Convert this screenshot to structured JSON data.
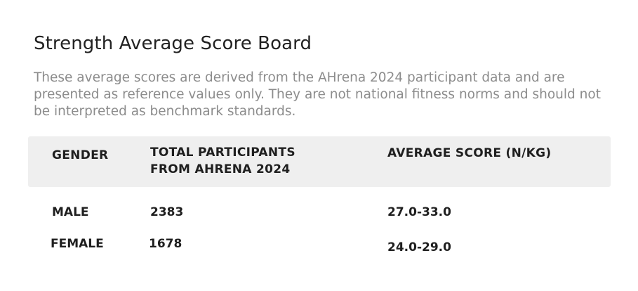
{
  "title": "Strength Average Score Board",
  "description": "These average scores are derived from the AHrena 2024 participant data and are presented as reference values only. They are not national fitness norms and should not be interpreted as benchmark standards.",
  "table": {
    "headers": {
      "gender": "GENDER",
      "participants": "TOTAL PARTICIPANTS FROM AHRENA 2024",
      "average": "AVERAGE SCORE (N/KG)"
    },
    "rows": [
      {
        "gender": "MALE",
        "participants": "2383",
        "average": "27.0-33.0"
      },
      {
        "gender": "FEMALE",
        "participants": "1678",
        "average": "24.0-29.0"
      }
    ]
  }
}
